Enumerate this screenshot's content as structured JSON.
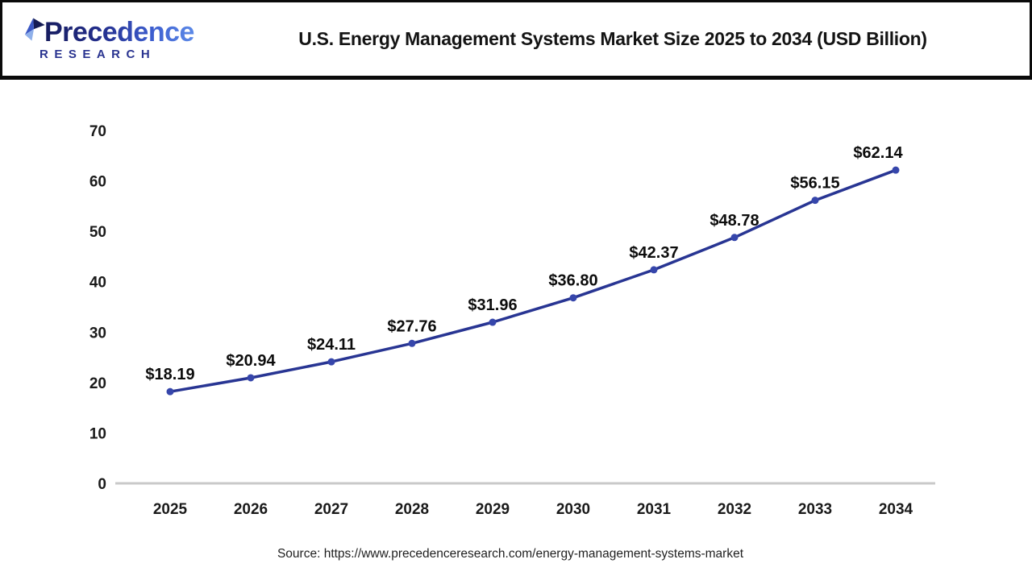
{
  "header": {
    "logo": {
      "line1": "Precedence",
      "line2": "RESEARCH"
    },
    "title": "U.S. Energy Management Systems Market Size 2025 to 2034 (USD Billion)"
  },
  "chart_data": {
    "type": "line",
    "title": "U.S. Energy Management Systems Market Size 2025 to 2034 (USD Billion)",
    "categories": [
      "2025",
      "2026",
      "2027",
      "2028",
      "2029",
      "2030",
      "2031",
      "2032",
      "2033",
      "2034"
    ],
    "series": [
      {
        "name": "U.S. Energy Management Systems Market Size (USD Billion)",
        "values": [
          18.19,
          20.94,
          24.11,
          27.76,
          31.96,
          36.8,
          42.37,
          48.78,
          56.15,
          62.14
        ]
      }
    ],
    "point_labels": [
      "$18.19",
      "$20.94",
      "$24.11",
      "$27.76",
      "$31.96",
      "$36.80",
      "$42.37",
      "$48.78",
      "$56.15",
      "$62.14"
    ],
    "xlabel": "",
    "ylabel": "",
    "ylim": [
      0,
      70
    ],
    "yticks": [
      0,
      10,
      20,
      30,
      40,
      50,
      60,
      70
    ],
    "grid": false,
    "legend": "none",
    "line_color": "#283593",
    "marker_color": "#3646ab",
    "axis_line_color": "#c9c9c9",
    "tick_label_color": "#1a1a1a",
    "data_label_color": "#0d0d0d"
  },
  "footer": {
    "source": "Source: https://www.precedenceresearch.com/energy-management-systems-market"
  }
}
